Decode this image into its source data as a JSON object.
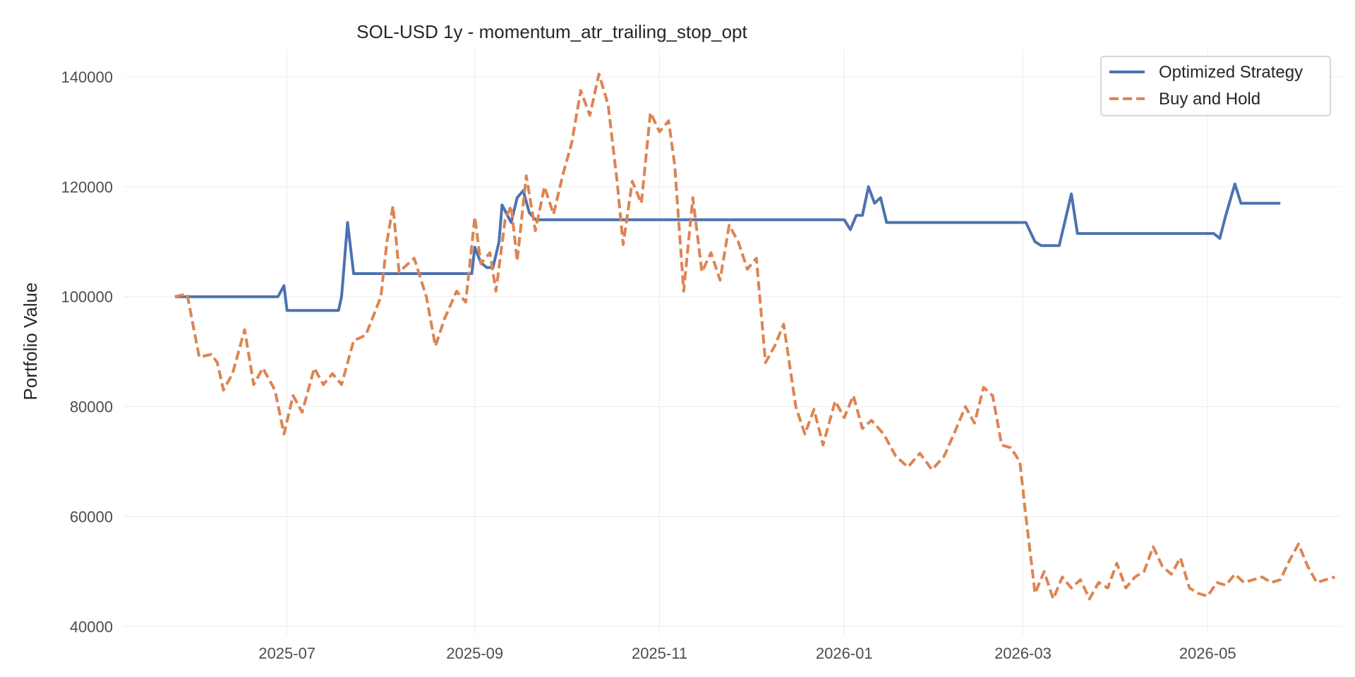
{
  "chart_data": {
    "type": "line",
    "title": "SOL-USD 1y - momentum_atr_trailing_stop_opt",
    "ylabel": "Portfolio Value",
    "xlabel": "",
    "ylim": [
      38500,
      145000
    ],
    "xlim": [
      "2025-05-08",
      "2026-06-14"
    ],
    "y_ticks": [
      40000,
      60000,
      80000,
      100000,
      120000,
      140000
    ],
    "x_ticks": [
      "2025-07",
      "2025-09",
      "2025-11",
      "2026-01",
      "2026-03",
      "2026-05"
    ],
    "grid": true,
    "legend_position": "top-right",
    "series": [
      {
        "name": "Optimized Strategy",
        "color": "#4c72b0",
        "dash": "solid",
        "points": [
          [
            "2025-05-25",
            100000
          ],
          [
            "2025-06-28",
            100000
          ],
          [
            "2025-06-30",
            102000
          ],
          [
            "2025-07-01",
            97500
          ],
          [
            "2025-07-18",
            97500
          ],
          [
            "2025-07-19",
            100000
          ],
          [
            "2025-07-21",
            113500
          ],
          [
            "2025-07-23",
            104200
          ],
          [
            "2025-08-31",
            104200
          ],
          [
            "2025-09-01",
            109000
          ],
          [
            "2025-09-03",
            106200
          ],
          [
            "2025-09-05",
            105300
          ],
          [
            "2025-09-07",
            105300
          ],
          [
            "2025-09-09",
            110000
          ],
          [
            "2025-09-10",
            116700
          ],
          [
            "2025-09-13",
            113500
          ],
          [
            "2025-09-15",
            118000
          ],
          [
            "2025-09-17",
            119300
          ],
          [
            "2025-09-19",
            115300
          ],
          [
            "2025-09-21",
            114000
          ],
          [
            "2026-01-01",
            114000
          ],
          [
            "2026-01-03",
            112200
          ],
          [
            "2026-01-05",
            114800
          ],
          [
            "2026-01-07",
            114800
          ],
          [
            "2026-01-09",
            120000
          ],
          [
            "2026-01-11",
            117000
          ],
          [
            "2026-01-13",
            118000
          ],
          [
            "2026-01-15",
            113500
          ],
          [
            "2026-03-02",
            113500
          ],
          [
            "2026-03-05",
            110000
          ],
          [
            "2026-03-07",
            109300
          ],
          [
            "2026-03-13",
            109300
          ],
          [
            "2026-03-17",
            118700
          ],
          [
            "2026-03-19",
            111500
          ],
          [
            "2026-05-03",
            111500
          ],
          [
            "2026-05-05",
            110600
          ],
          [
            "2026-05-07",
            114800
          ],
          [
            "2026-05-10",
            120500
          ],
          [
            "2026-05-12",
            117000
          ],
          [
            "2026-05-25",
            117000
          ]
        ]
      },
      {
        "name": "Buy and Hold",
        "color": "#dd8452",
        "dash": "dashed",
        "points": [
          [
            "2025-05-25",
            100000
          ],
          [
            "2025-05-29",
            100500
          ],
          [
            "2025-06-02",
            89000
          ],
          [
            "2025-06-06",
            89500
          ],
          [
            "2025-06-08",
            88000
          ],
          [
            "2025-06-10",
            83000
          ],
          [
            "2025-06-13",
            86000
          ],
          [
            "2025-06-17",
            94000
          ],
          [
            "2025-06-20",
            84000
          ],
          [
            "2025-06-23",
            87000
          ],
          [
            "2025-06-27",
            83000
          ],
          [
            "2025-06-30",
            75000
          ],
          [
            "2025-07-03",
            82000
          ],
          [
            "2025-07-06",
            79000
          ],
          [
            "2025-07-10",
            87000
          ],
          [
            "2025-07-13",
            84000
          ],
          [
            "2025-07-16",
            86000
          ],
          [
            "2025-07-19",
            84000
          ],
          [
            "2025-07-23",
            92000
          ],
          [
            "2025-07-27",
            93000
          ],
          [
            "2025-08-01",
            100000
          ],
          [
            "2025-08-03",
            110000
          ],
          [
            "2025-08-05",
            116500
          ],
          [
            "2025-08-07",
            104500
          ],
          [
            "2025-08-12",
            107000
          ],
          [
            "2025-08-16",
            100000
          ],
          [
            "2025-08-19",
            91000
          ],
          [
            "2025-08-22",
            96000
          ],
          [
            "2025-08-26",
            101000
          ],
          [
            "2025-08-29",
            99000
          ],
          [
            "2025-09-01",
            114500
          ],
          [
            "2025-09-03",
            106000
          ],
          [
            "2025-09-06",
            108000
          ],
          [
            "2025-09-08",
            101000
          ],
          [
            "2025-09-11",
            114000
          ],
          [
            "2025-09-13",
            116500
          ],
          [
            "2025-09-15",
            106500
          ],
          [
            "2025-09-18",
            122000
          ],
          [
            "2025-09-21",
            112000
          ],
          [
            "2025-09-24",
            120000
          ],
          [
            "2025-09-27",
            115000
          ],
          [
            "2025-09-30",
            122000
          ],
          [
            "2025-10-03",
            128000
          ],
          [
            "2025-10-06",
            137500
          ],
          [
            "2025-10-09",
            133000
          ],
          [
            "2025-10-12",
            140500
          ],
          [
            "2025-10-15",
            135000
          ],
          [
            "2025-10-18",
            121000
          ],
          [
            "2025-10-20",
            109500
          ],
          [
            "2025-10-23",
            121000
          ],
          [
            "2025-10-26",
            117000
          ],
          [
            "2025-10-29",
            133500
          ],
          [
            "2025-11-01",
            130000
          ],
          [
            "2025-11-04",
            132000
          ],
          [
            "2025-11-06",
            124000
          ],
          [
            "2025-11-09",
            101000
          ],
          [
            "2025-11-12",
            118000
          ],
          [
            "2025-11-15",
            104500
          ],
          [
            "2025-11-18",
            108000
          ],
          [
            "2025-11-21",
            103000
          ],
          [
            "2025-11-24",
            113000
          ],
          [
            "2025-11-27",
            110000
          ],
          [
            "2025-11-30",
            105000
          ],
          [
            "2025-12-03",
            107000
          ],
          [
            "2025-12-06",
            88000
          ],
          [
            "2025-12-09",
            91000
          ],
          [
            "2025-12-12",
            95000
          ],
          [
            "2025-12-16",
            80000
          ],
          [
            "2025-12-19",
            75000
          ],
          [
            "2025-12-22",
            79500
          ],
          [
            "2025-12-25",
            73000
          ],
          [
            "2025-12-29",
            81000
          ],
          [
            "2026-01-01",
            78000
          ],
          [
            "2026-01-04",
            82000
          ],
          [
            "2026-01-07",
            76000
          ],
          [
            "2026-01-10",
            77500
          ],
          [
            "2026-01-14",
            75000
          ],
          [
            "2026-01-18",
            71000
          ],
          [
            "2026-01-22",
            69000
          ],
          [
            "2026-01-26",
            71500
          ],
          [
            "2026-01-30",
            68500
          ],
          [
            "2026-02-03",
            71000
          ],
          [
            "2026-02-07",
            76000
          ],
          [
            "2026-02-10",
            80000
          ],
          [
            "2026-02-13",
            77000
          ],
          [
            "2026-02-16",
            83500
          ],
          [
            "2026-02-19",
            82000
          ],
          [
            "2026-02-22",
            73000
          ],
          [
            "2026-02-25",
            72500
          ],
          [
            "2026-02-28",
            70000
          ],
          [
            "2026-03-02",
            60000
          ],
          [
            "2026-03-05",
            46000
          ],
          [
            "2026-03-08",
            50000
          ],
          [
            "2026-03-11",
            45000
          ],
          [
            "2026-03-14",
            49000
          ],
          [
            "2026-03-17",
            47000
          ],
          [
            "2026-03-20",
            48500
          ],
          [
            "2026-03-23",
            45000
          ],
          [
            "2026-03-26",
            48000
          ],
          [
            "2026-03-29",
            47000
          ],
          [
            "2026-04-01",
            51500
          ],
          [
            "2026-04-04",
            47000
          ],
          [
            "2026-04-07",
            49000
          ],
          [
            "2026-04-10",
            50000
          ],
          [
            "2026-04-13",
            54500
          ],
          [
            "2026-04-16",
            51000
          ],
          [
            "2026-04-19",
            49500
          ],
          [
            "2026-04-22",
            52500
          ],
          [
            "2026-04-25",
            47000
          ],
          [
            "2026-04-28",
            46000
          ],
          [
            "2026-05-01",
            45500
          ],
          [
            "2026-05-04",
            48000
          ],
          [
            "2026-05-07",
            47500
          ],
          [
            "2026-05-10",
            49500
          ],
          [
            "2026-05-13",
            48000
          ],
          [
            "2026-05-16",
            48500
          ],
          [
            "2026-05-19",
            49000
          ],
          [
            "2026-05-22",
            48000
          ],
          [
            "2026-05-25",
            48500
          ],
          [
            "2026-05-28",
            52000
          ],
          [
            "2026-05-31",
            55000
          ],
          [
            "2026-06-03",
            51000
          ],
          [
            "2026-06-06",
            48000
          ],
          [
            "2026-06-09",
            48500
          ],
          [
            "2026-06-12",
            49000
          ]
        ]
      }
    ]
  }
}
